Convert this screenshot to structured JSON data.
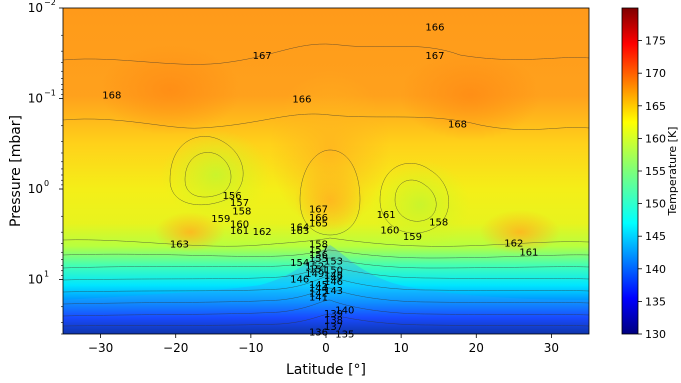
{
  "chart_data": {
    "type": "heatmap",
    "xlabel": "Latitude [°]",
    "ylabel": "Pressure [mbar]",
    "colorbar_label": "Temperature [K]",
    "xlim": [
      -35,
      35
    ],
    "ylim_mbar": [
      40,
      0.01
    ],
    "y_scale": "log",
    "colormap": "jet",
    "color_range": [
      130,
      180
    ],
    "x_ticks": [
      -30,
      -20,
      -10,
      0,
      10,
      20,
      30
    ],
    "x_tick_labels": [
      "−30",
      "−20",
      "−10",
      "0",
      "10",
      "20",
      "30"
    ],
    "y_ticks": [
      0.01,
      0.1,
      1,
      10
    ],
    "y_tick_labels": [
      "10",
      "10",
      "10",
      "10"
    ],
    "y_tick_exponents": [
      "−2",
      "−1",
      "0",
      "1"
    ],
    "cbar_ticks": [
      130,
      135,
      140,
      145,
      150,
      155,
      160,
      165,
      170,
      175
    ],
    "cbar_tick_labels": [
      "130",
      "135",
      "140",
      "145",
      "150",
      "155",
      "160",
      "165",
      "170",
      "175"
    ],
    "contour_labels": [
      {
        "text": "166",
        "lat": 14.5,
        "p": 0.016
      },
      {
        "text": "167",
        "lat": 14.5,
        "p": 0.033
      },
      {
        "text": "167",
        "lat": -8.5,
        "p": 0.033
      },
      {
        "text": "168",
        "lat": -28.5,
        "p": 0.09
      },
      {
        "text": "166",
        "lat": -3.2,
        "p": 0.1
      },
      {
        "text": "168",
        "lat": 17.5,
        "p": 0.19
      },
      {
        "text": "156",
        "lat": -12.5,
        "p": 1.16
      },
      {
        "text": "157",
        "lat": -11.5,
        "p": 1.4
      },
      {
        "text": "158",
        "lat": -11.2,
        "p": 1.73
      },
      {
        "text": "159",
        "lat": -14,
        "p": 2.1
      },
      {
        "text": "160",
        "lat": -11.5,
        "p": 2.4
      },
      {
        "text": "161",
        "lat": -11.5,
        "p": 2.85
      },
      {
        "text": "162",
        "lat": -8.5,
        "p": 2.9
      },
      {
        "text": "163",
        "lat": -19.5,
        "p": 4.0
      },
      {
        "text": "167",
        "lat": -1,
        "p": 1.65
      },
      {
        "text": "166",
        "lat": -1,
        "p": 2.05
      },
      {
        "text": "165",
        "lat": -1,
        "p": 2.35
      },
      {
        "text": "164",
        "lat": -3.5,
        "p": 2.6
      },
      {
        "text": "163",
        "lat": -3.5,
        "p": 2.85
      },
      {
        "text": "161",
        "lat": 8,
        "p": 1.9
      },
      {
        "text": "160",
        "lat": 8.5,
        "p": 2.8
      },
      {
        "text": "159",
        "lat": 11.5,
        "p": 3.3
      },
      {
        "text": "158",
        "lat": 15,
        "p": 2.3
      },
      {
        "text": "162",
        "lat": 25,
        "p": 3.9
      },
      {
        "text": "161",
        "lat": 27,
        "p": 4.9
      },
      {
        "text": "158",
        "lat": -1,
        "p": 4.0
      },
      {
        "text": "157",
        "lat": -1,
        "p": 4.6
      },
      {
        "text": "156",
        "lat": -1,
        "p": 5.2
      },
      {
        "text": "155",
        "lat": -1,
        "p": 5.8
      },
      {
        "text": "154",
        "lat": -3.5,
        "p": 6.4
      },
      {
        "text": "153",
        "lat": 1,
        "p": 6.2
      },
      {
        "text": "152",
        "lat": -1.5,
        "p": 7.0
      },
      {
        "text": "151",
        "lat": -1,
        "p": 7.6
      },
      {
        "text": "150",
        "lat": 1,
        "p": 7.8
      },
      {
        "text": "149",
        "lat": -1.5,
        "p": 8.5
      },
      {
        "text": "148",
        "lat": 1,
        "p": 8.8
      },
      {
        "text": "147",
        "lat": 1,
        "p": 9.5
      },
      {
        "text": "146",
        "lat": -3.5,
        "p": 9.7
      },
      {
        "text": "146",
        "lat": 1,
        "p": 10.4
      },
      {
        "text": "145",
        "lat": -1,
        "p": 11.2
      },
      {
        "text": "144",
        "lat": -1,
        "p": 12.3
      },
      {
        "text": "143",
        "lat": 1,
        "p": 13.0
      },
      {
        "text": "142",
        "lat": -1,
        "p": 14.0
      },
      {
        "text": "141",
        "lat": -1,
        "p": 15.5
      },
      {
        "text": "140",
        "lat": 2.5,
        "p": 21.5
      },
      {
        "text": "139",
        "lat": 1,
        "p": 23.5
      },
      {
        "text": "138",
        "lat": 1,
        "p": 27.5
      },
      {
        "text": "137",
        "lat": 1,
        "p": 32.5
      },
      {
        "text": "136",
        "lat": -1,
        "p": 37.5
      },
      {
        "text": "135",
        "lat": 2.5,
        "p": 39.5
      }
    ]
  }
}
